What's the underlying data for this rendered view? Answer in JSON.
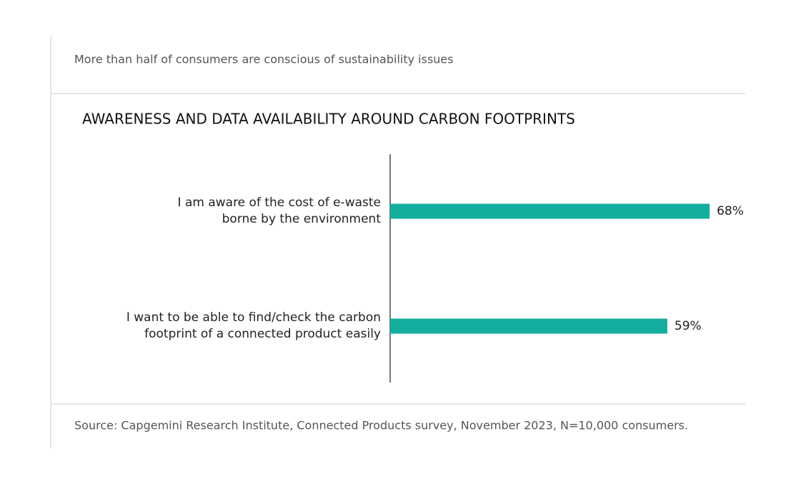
{
  "subtitle": "More than half of consumers are conscious of sustainability issues",
  "chart_data": {
    "type": "barh",
    "title": "AWARENESS AND DATA AVAILABILITY AROUND CARBON FOOTPRINTS",
    "categories": [
      "I am aware of the cost of e-waste borne by the environment",
      "I want to be able to find/check the carbon footprint of a connected product easily"
    ],
    "values": [
      68,
      59
    ],
    "value_labels": [
      "68%",
      "59%"
    ],
    "color": "#14ae9f",
    "xlim": [
      0,
      80
    ]
  },
  "source": "Source: Capgemini Research Institute, Connected Products survey, November 2023, N=10,000 consumers."
}
